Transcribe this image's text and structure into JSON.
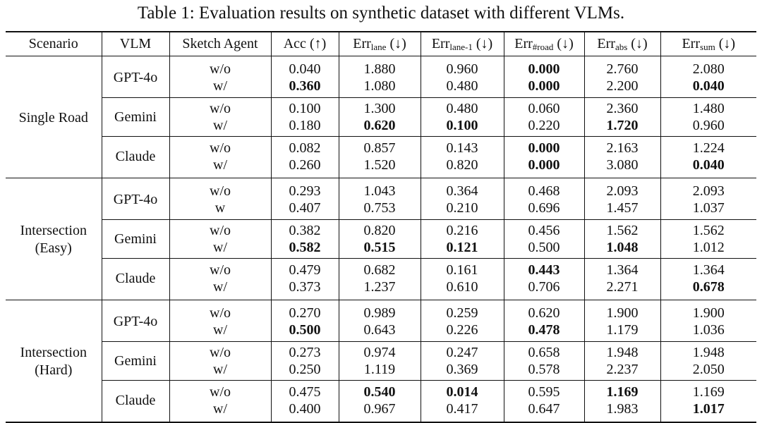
{
  "caption": "Table 1: Evaluation results on synthetic dataset with different VLMs.",
  "headers": {
    "scenario": "Scenario",
    "vlm": "VLM",
    "sketch_agent": "Sketch Agent",
    "acc_base": "Acc",
    "acc_arrow": "(↑)",
    "err_base": "Err",
    "lane_sub": "lane",
    "lane1_sub": "lane-1",
    "road_sub": "#road",
    "abs_sub": "abs",
    "sum_sub": "sum",
    "down_arrow": "(↓)"
  },
  "scenarios": [
    {
      "name_lines": [
        "Single Road"
      ],
      "groups": [
        {
          "vlm": "GPT-4o",
          "rows": [
            {
              "agent": "w/o",
              "vals": [
                "0.040",
                "1.880",
                "0.960",
                "0.000",
                "2.760",
                "2.080"
              ],
              "bold": [
                false,
                false,
                false,
                true,
                false,
                false
              ]
            },
            {
              "agent": "w/",
              "vals": [
                "0.360",
                "1.080",
                "0.480",
                "0.000",
                "2.200",
                "0.040"
              ],
              "bold": [
                true,
                false,
                false,
                true,
                false,
                true
              ]
            }
          ]
        },
        {
          "vlm": "Gemini",
          "rows": [
            {
              "agent": "w/o",
              "vals": [
                "0.100",
                "1.300",
                "0.480",
                "0.060",
                "2.360",
                "1.480"
              ],
              "bold": [
                false,
                false,
                false,
                false,
                false,
                false
              ]
            },
            {
              "agent": "w/",
              "vals": [
                "0.180",
                "0.620",
                "0.100",
                "0.220",
                "1.720",
                "0.960"
              ],
              "bold": [
                false,
                true,
                true,
                false,
                true,
                false
              ]
            }
          ]
        },
        {
          "vlm": "Claude",
          "rows": [
            {
              "agent": "w/o",
              "vals": [
                "0.082",
                "0.857",
                "0.143",
                "0.000",
                "2.163",
                "1.224"
              ],
              "bold": [
                false,
                false,
                false,
                true,
                false,
                false
              ]
            },
            {
              "agent": "w/",
              "vals": [
                "0.260",
                "1.520",
                "0.820",
                "0.000",
                "3.080",
                "0.040"
              ],
              "bold": [
                false,
                false,
                false,
                true,
                false,
                true
              ]
            }
          ]
        }
      ]
    },
    {
      "name_lines": [
        "Intersection",
        "(Easy)"
      ],
      "groups": [
        {
          "vlm": "GPT-4o",
          "rows": [
            {
              "agent": "w/o",
              "vals": [
                "0.293",
                "1.043",
                "0.364",
                "0.468",
                "2.093",
                "2.093"
              ],
              "bold": [
                false,
                false,
                false,
                false,
                false,
                false
              ]
            },
            {
              "agent": "w",
              "vals": [
                "0.407",
                "0.753",
                "0.210",
                "0.696",
                "1.457",
                "1.037"
              ],
              "bold": [
                false,
                false,
                false,
                false,
                false,
                false
              ]
            }
          ]
        },
        {
          "vlm": "Gemini",
          "rows": [
            {
              "agent": "w/o",
              "vals": [
                "0.382",
                "0.820",
                "0.216",
                "0.456",
                "1.562",
                "1.562"
              ],
              "bold": [
                false,
                false,
                false,
                false,
                false,
                false
              ]
            },
            {
              "agent": "w/",
              "vals": [
                "0.582",
                "0.515",
                "0.121",
                "0.500",
                "1.048",
                "1.012"
              ],
              "bold": [
                true,
                true,
                true,
                false,
                true,
                false
              ]
            }
          ]
        },
        {
          "vlm": "Claude",
          "rows": [
            {
              "agent": "w/o",
              "vals": [
                "0.479",
                "0.682",
                "0.161",
                "0.443",
                "1.364",
                "1.364"
              ],
              "bold": [
                false,
                false,
                false,
                true,
                false,
                false
              ]
            },
            {
              "agent": "w/",
              "vals": [
                "0.373",
                "1.237",
                "0.610",
                "0.706",
                "2.271",
                "0.678"
              ],
              "bold": [
                false,
                false,
                false,
                false,
                false,
                true
              ]
            }
          ]
        }
      ]
    },
    {
      "name_lines": [
        "Intersection",
        "(Hard)"
      ],
      "groups": [
        {
          "vlm": "GPT-4o",
          "rows": [
            {
              "agent": "w/o",
              "vals": [
                "0.270",
                "0.989",
                "0.259",
                "0.620",
                "1.900",
                "1.900"
              ],
              "bold": [
                false,
                false,
                false,
                false,
                false,
                false
              ]
            },
            {
              "agent": "w/",
              "vals": [
                "0.500",
                "0.643",
                "0.226",
                "0.478",
                "1.179",
                "1.036"
              ],
              "bold": [
                true,
                false,
                false,
                true,
                false,
                false
              ]
            }
          ]
        },
        {
          "vlm": "Gemini",
          "rows": [
            {
              "agent": "w/o",
              "vals": [
                "0.273",
                "0.974",
                "0.247",
                "0.658",
                "1.948",
                "1.948"
              ],
              "bold": [
                false,
                false,
                false,
                false,
                false,
                false
              ]
            },
            {
              "agent": "w/",
              "vals": [
                "0.250",
                "1.119",
                "0.369",
                "0.578",
                "2.237",
                "2.050"
              ],
              "bold": [
                false,
                false,
                false,
                false,
                false,
                false
              ]
            }
          ]
        },
        {
          "vlm": "Claude",
          "rows": [
            {
              "agent": "w/o",
              "vals": [
                "0.475",
                "0.540",
                "0.014",
                "0.595",
                "1.169",
                "1.169"
              ],
              "bold": [
                false,
                true,
                true,
                false,
                true,
                false
              ]
            },
            {
              "agent": "w/",
              "vals": [
                "0.400",
                "0.967",
                "0.417",
                "0.647",
                "1.983",
                "1.017"
              ],
              "bold": [
                false,
                false,
                false,
                false,
                false,
                true
              ]
            }
          ]
        }
      ]
    }
  ]
}
